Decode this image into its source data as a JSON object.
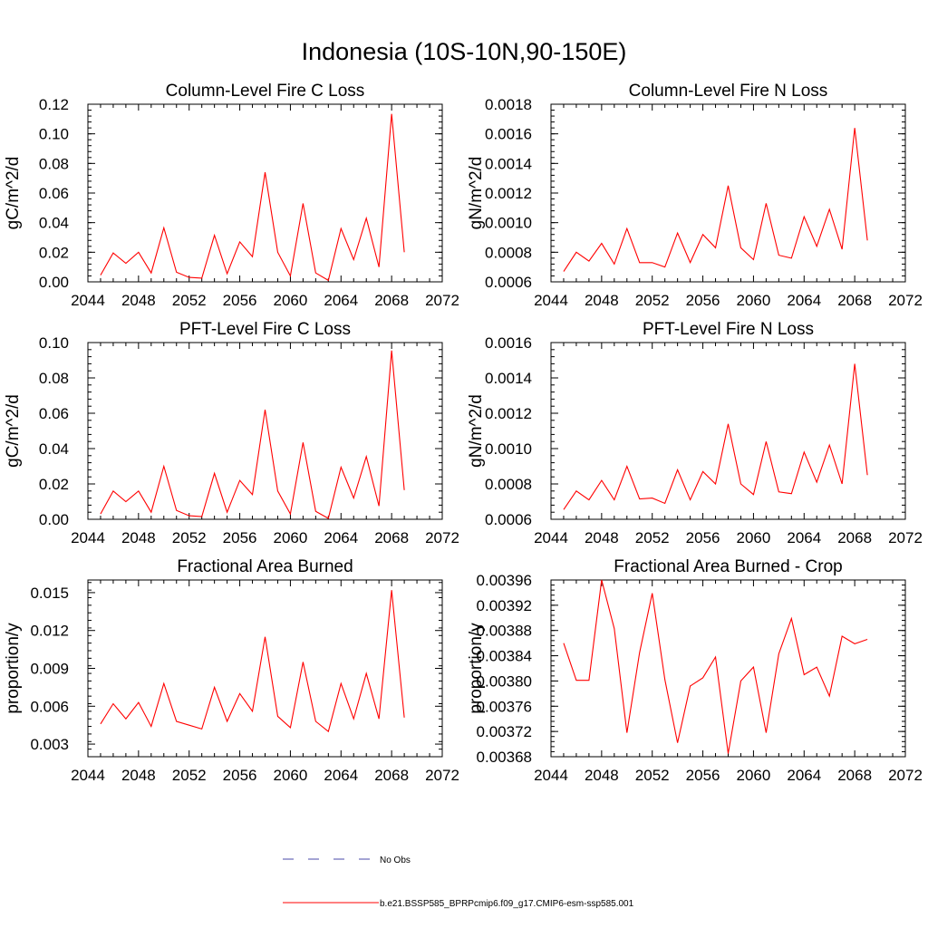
{
  "figure": {
    "title": "Indonesia (10S-10N,90-150E)",
    "line_color": "#ff0000",
    "obs_color": "#4a4aa8"
  },
  "legend": {
    "placement": "bottom-center",
    "items": [
      {
        "label": "No Obs",
        "style": "dashed",
        "color": "#4a4aa8"
      },
      {
        "label": "b.e21.BSSP585_BPRPcmip6.f09_g17.CMIP6-esm-ssp585.001",
        "style": "solid",
        "color": "#ff0000"
      }
    ]
  },
  "chart_data": [
    {
      "type": "line",
      "title": "Column-Level Fire C Loss",
      "xlabel": "",
      "ylabel": "gC/m^2/d",
      "xlim": [
        2044,
        2072
      ],
      "ylim": [
        0.0,
        0.12
      ],
      "xticks": [
        "2044",
        "2048",
        "2052",
        "2056",
        "2060",
        "2064",
        "2068",
        "2072"
      ],
      "yticks": [
        "0.00",
        "0.02",
        "0.04",
        "0.06",
        "0.08",
        "0.10",
        "0.12"
      ],
      "x": [
        2045,
        2046,
        2047,
        2048,
        2049,
        2050,
        2051,
        2052,
        2053,
        2054,
        2055,
        2056,
        2057,
        2058,
        2059,
        2060,
        2061,
        2062,
        2063,
        2064,
        2065,
        2066,
        2067,
        2068,
        2069
      ],
      "series": [
        {
          "values": [
            0.0045,
            0.0195,
            0.0125,
            0.02,
            0.006,
            0.0365,
            0.0065,
            0.003,
            0.0025,
            0.0315,
            0.0055,
            0.027,
            0.017,
            0.074,
            0.02,
            0.004,
            0.053,
            0.006,
            0.001,
            0.036,
            0.015,
            0.043,
            0.01,
            0.1135,
            0.02
          ]
        }
      ]
    },
    {
      "type": "line",
      "title": "Column-Level Fire N Loss",
      "xlabel": "",
      "ylabel": "gN/m^2/d",
      "xlim": [
        2044,
        2072
      ],
      "ylim": [
        0.0006,
        0.0018
      ],
      "xticks": [
        "2044",
        "2048",
        "2052",
        "2056",
        "2060",
        "2064",
        "2068",
        "2072"
      ],
      "yticks": [
        "0.0006",
        "0.0008",
        "0.0010",
        "0.0012",
        "0.0014",
        "0.0016",
        "0.0018"
      ],
      "x": [
        2045,
        2046,
        2047,
        2048,
        2049,
        2050,
        2051,
        2052,
        2053,
        2054,
        2055,
        2056,
        2057,
        2058,
        2059,
        2060,
        2061,
        2062,
        2063,
        2064,
        2065,
        2066,
        2067,
        2068,
        2069
      ],
      "series": [
        {
          "values": [
            0.00067,
            0.0008,
            0.00074,
            0.00086,
            0.00072,
            0.00096,
            0.00073,
            0.00073,
            0.0007,
            0.00093,
            0.00073,
            0.00092,
            0.00083,
            0.00125,
            0.00083,
            0.00075,
            0.00113,
            0.00078,
            0.00076,
            0.00104,
            0.00084,
            0.00109,
            0.00082,
            0.00164,
            0.00088
          ]
        }
      ]
    },
    {
      "type": "line",
      "title": "PFT-Level Fire C Loss",
      "xlabel": "",
      "ylabel": "gC/m^2/d",
      "xlim": [
        2044,
        2072
      ],
      "ylim": [
        0.0,
        0.1
      ],
      "xticks": [
        "2044",
        "2048",
        "2052",
        "2056",
        "2060",
        "2064",
        "2068",
        "2072"
      ],
      "yticks": [
        "0.00",
        "0.02",
        "0.04",
        "0.06",
        "0.08",
        "0.10"
      ],
      "x": [
        2045,
        2046,
        2047,
        2048,
        2049,
        2050,
        2051,
        2052,
        2053,
        2054,
        2055,
        2056,
        2057,
        2058,
        2059,
        2060,
        2061,
        2062,
        2063,
        2064,
        2065,
        2066,
        2067,
        2068,
        2069
      ],
      "series": [
        {
          "values": [
            0.003,
            0.016,
            0.01,
            0.016,
            0.004,
            0.03,
            0.005,
            0.002,
            0.0015,
            0.026,
            0.004,
            0.022,
            0.014,
            0.062,
            0.016,
            0.003,
            0.0435,
            0.0045,
            0.0005,
            0.0295,
            0.012,
            0.0355,
            0.0075,
            0.0955,
            0.0165
          ]
        }
      ]
    },
    {
      "type": "line",
      "title": "PFT-Level Fire N Loss",
      "xlabel": "",
      "ylabel": "gN/m^2/d",
      "xlim": [
        2044,
        2072
      ],
      "ylim": [
        0.0006,
        0.0016
      ],
      "xticks": [
        "2044",
        "2048",
        "2052",
        "2056",
        "2060",
        "2064",
        "2068",
        "2072"
      ],
      "yticks": [
        "0.0006",
        "0.0008",
        "0.0010",
        "0.0012",
        "0.0014",
        "0.0016"
      ],
      "x": [
        2045,
        2046,
        2047,
        2048,
        2049,
        2050,
        2051,
        2052,
        2053,
        2054,
        2055,
        2056,
        2057,
        2058,
        2059,
        2060,
        2061,
        2062,
        2063,
        2064,
        2065,
        2066,
        2067,
        2068,
        2069
      ],
      "series": [
        {
          "values": [
            0.000655,
            0.00076,
            0.00071,
            0.00082,
            0.00071,
            0.0009,
            0.000715,
            0.00072,
            0.00069,
            0.00088,
            0.00071,
            0.00087,
            0.0008,
            0.00114,
            0.0008,
            0.00074,
            0.00104,
            0.000755,
            0.000745,
            0.00098,
            0.00081,
            0.00102,
            0.0008,
            0.00148,
            0.00085
          ]
        }
      ]
    },
    {
      "type": "line",
      "title": "Fractional Area Burned",
      "xlabel": "",
      "ylabel": "proportion/y",
      "xlim": [
        2044,
        2072
      ],
      "ylim": [
        0.002,
        0.016
      ],
      "xticks": [
        "2044",
        "2048",
        "2052",
        "2056",
        "2060",
        "2064",
        "2068",
        "2072"
      ],
      "yticks": [
        "0.003",
        "0.006",
        "0.009",
        "0.012",
        "0.015"
      ],
      "ytick_values": [
        0.003,
        0.006,
        0.009,
        0.012,
        0.015
      ],
      "x": [
        2045,
        2046,
        2047,
        2048,
        2049,
        2050,
        2051,
        2052,
        2053,
        2054,
        2055,
        2056,
        2057,
        2058,
        2059,
        2060,
        2061,
        2062,
        2063,
        2064,
        2065,
        2066,
        2067,
        2068,
        2069
      ],
      "series": [
        {
          "values": [
            0.0046,
            0.0062,
            0.005,
            0.0063,
            0.0044,
            0.0078,
            0.0048,
            0.0045,
            0.0042,
            0.0075,
            0.0048,
            0.007,
            0.0056,
            0.0115,
            0.0052,
            0.0043,
            0.0095,
            0.0048,
            0.004,
            0.0078,
            0.005,
            0.0086,
            0.005,
            0.0152,
            0.0051
          ]
        }
      ]
    },
    {
      "type": "line",
      "title": "Fractional Area Burned - Crop",
      "xlabel": "",
      "ylabel": "proportion/y",
      "xlim": [
        2044,
        2072
      ],
      "ylim": [
        0.00368,
        0.00396
      ],
      "xticks": [
        "2044",
        "2048",
        "2052",
        "2056",
        "2060",
        "2064",
        "2068",
        "2072"
      ],
      "yticks": [
        "0.00368",
        "0.00372",
        "0.00376",
        "0.00380",
        "0.00384",
        "0.00388",
        "0.00392",
        "0.00396"
      ],
      "x": [
        2045,
        2046,
        2047,
        2048,
        2049,
        2050,
        2051,
        2052,
        2053,
        2054,
        2055,
        2056,
        2057,
        2058,
        2059,
        2060,
        2061,
        2062,
        2063,
        2064,
        2065,
        2066,
        2067,
        2068,
        2069
      ],
      "series": [
        {
          "values": [
            0.00386,
            0.003801,
            0.003801,
            0.00396,
            0.003883,
            0.003718,
            0.003845,
            0.003939,
            0.003802,
            0.003702,
            0.003792,
            0.003805,
            0.003838,
            0.003685,
            0.0038,
            0.003822,
            0.003718,
            0.003843,
            0.003899,
            0.00381,
            0.003822,
            0.003776,
            0.003871,
            0.003859,
            0.003866
          ]
        }
      ]
    }
  ]
}
